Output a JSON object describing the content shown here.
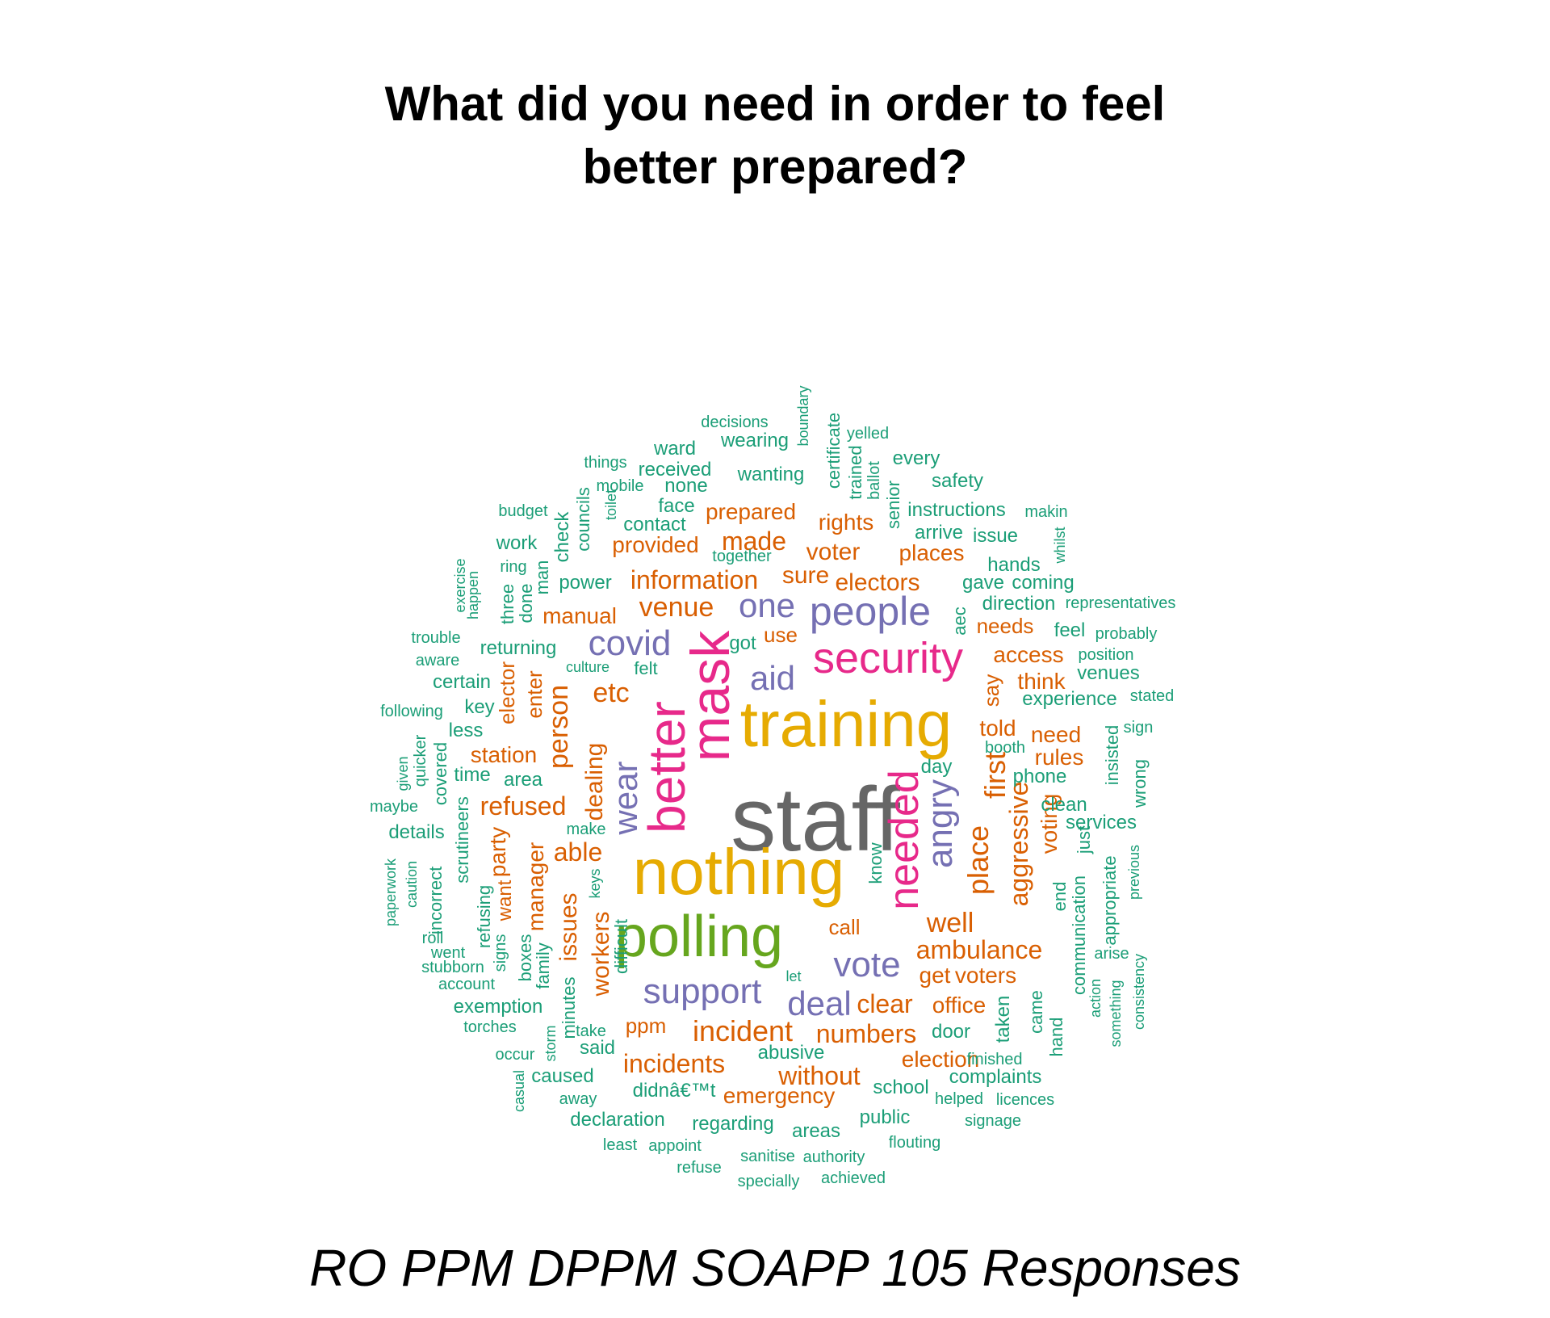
{
  "title": {
    "line1": "What did you need in order to feel",
    "line2": "better prepared?"
  },
  "subtitle": "RO PPM DPPM SOAPP 105 Responses",
  "palette": {
    "grey": "#666666",
    "gold": "#E6AB02",
    "green": "#66A61E",
    "pink": "#E7298A",
    "purple": "#7570B3",
    "orange": "#D95F02",
    "teal": "#1B9E77"
  },
  "words": [
    {
      "text": "staff",
      "size": 112,
      "color": "grey"
    },
    {
      "text": "training",
      "size": 80,
      "color": "gold"
    },
    {
      "text": "nothing",
      "size": 80,
      "color": "gold"
    },
    {
      "text": "polling",
      "size": 72,
      "color": "green"
    },
    {
      "text": "mask",
      "size": 68,
      "color": "pink"
    },
    {
      "text": "better",
      "size": 64,
      "color": "pink"
    },
    {
      "text": "security",
      "size": 54,
      "color": "pink"
    },
    {
      "text": "needed",
      "size": 52,
      "color": "pink"
    },
    {
      "text": "people",
      "size": 50,
      "color": "purple"
    },
    {
      "text": "covid",
      "size": 44,
      "color": "purple"
    },
    {
      "text": "support",
      "size": 44,
      "color": "purple"
    },
    {
      "text": "vote",
      "size": 44,
      "color": "purple"
    },
    {
      "text": "angry",
      "size": 44,
      "color": "purple"
    },
    {
      "text": "deal",
      "size": 42,
      "color": "purple"
    },
    {
      "text": "one",
      "size": 42,
      "color": "purple"
    },
    {
      "text": "aid",
      "size": 42,
      "color": "purple"
    },
    {
      "text": "wear",
      "size": 42,
      "color": "purple"
    },
    {
      "text": "incident",
      "size": 36,
      "color": "orange"
    },
    {
      "text": "first",
      "size": 36,
      "color": "orange"
    },
    {
      "text": "place",
      "size": 36,
      "color": "orange"
    },
    {
      "text": "venue",
      "size": 34,
      "color": "orange"
    },
    {
      "text": "person",
      "size": 34,
      "color": "orange"
    },
    {
      "text": "etc",
      "size": 34,
      "color": "orange"
    },
    {
      "text": "well",
      "size": 34,
      "color": "orange"
    },
    {
      "text": "aggressive",
      "size": 32,
      "color": "orange"
    },
    {
      "text": "ambulance",
      "size": 32,
      "color": "orange"
    },
    {
      "text": "information",
      "size": 32,
      "color": "orange"
    },
    {
      "text": "incidents",
      "size": 32,
      "color": "orange"
    },
    {
      "text": "refused",
      "size": 32,
      "color": "orange"
    },
    {
      "text": "made",
      "size": 32,
      "color": "orange"
    },
    {
      "text": "without",
      "size": 32,
      "color": "orange"
    },
    {
      "text": "numbers",
      "size": 32,
      "color": "orange"
    },
    {
      "text": "clear",
      "size": 32,
      "color": "orange"
    },
    {
      "text": "able",
      "size": 32,
      "color": "orange"
    },
    {
      "text": "electors",
      "size": 30,
      "color": "orange"
    },
    {
      "text": "voter",
      "size": 30,
      "color": "orange"
    },
    {
      "text": "sure",
      "size": 30,
      "color": "orange"
    },
    {
      "text": "dealing",
      "size": 30,
      "color": "orange"
    },
    {
      "text": "issues",
      "size": 30,
      "color": "orange"
    },
    {
      "text": "workers",
      "size": 30,
      "color": "orange"
    },
    {
      "text": "manager",
      "size": 28,
      "color": "orange"
    },
    {
      "text": "told",
      "size": 28,
      "color": "orange"
    },
    {
      "text": "emergency",
      "size": 28,
      "color": "orange"
    },
    {
      "text": "manual",
      "size": 28,
      "color": "orange"
    },
    {
      "text": "prepared",
      "size": 28,
      "color": "orange"
    },
    {
      "text": "places",
      "size": 28,
      "color": "orange"
    },
    {
      "text": "rights",
      "size": 28,
      "color": "orange"
    },
    {
      "text": "provided",
      "size": 28,
      "color": "orange"
    },
    {
      "text": "access",
      "size": 28,
      "color": "orange"
    },
    {
      "text": "think",
      "size": 28,
      "color": "orange"
    },
    {
      "text": "need",
      "size": 28,
      "color": "orange"
    },
    {
      "text": "rules",
      "size": 28,
      "color": "orange"
    },
    {
      "text": "station",
      "size": 28,
      "color": "orange"
    },
    {
      "text": "party",
      "size": 28,
      "color": "orange"
    },
    {
      "text": "election",
      "size": 28,
      "color": "orange"
    },
    {
      "text": "office",
      "size": 28,
      "color": "orange"
    },
    {
      "text": "get",
      "size": 28,
      "color": "orange"
    },
    {
      "text": "voters",
      "size": 28,
      "color": "orange"
    },
    {
      "text": "voting",
      "size": 28,
      "color": "orange"
    },
    {
      "text": "elector",
      "size": 26,
      "color": "orange"
    },
    {
      "text": "enter",
      "size": 26,
      "color": "orange"
    },
    {
      "text": "say",
      "size": 26,
      "color": "orange"
    },
    {
      "text": "needs",
      "size": 26,
      "color": "orange"
    },
    {
      "text": "use",
      "size": 26,
      "color": "orange"
    },
    {
      "text": "call",
      "size": 26,
      "color": "orange"
    },
    {
      "text": "ppm",
      "size": 26,
      "color": "orange"
    },
    {
      "text": "want",
      "size": 24,
      "color": "orange"
    },
    {
      "text": "got",
      "size": 24,
      "color": "teal"
    },
    {
      "text": "felt",
      "size": 22,
      "color": "teal"
    },
    {
      "text": "culture",
      "size": 18,
      "color": "teal"
    },
    {
      "text": "decisions",
      "size": 20,
      "color": "teal"
    },
    {
      "text": "boundary",
      "size": 18,
      "color": "teal"
    },
    {
      "text": "wearing",
      "size": 24,
      "color": "teal"
    },
    {
      "text": "certificate",
      "size": 22,
      "color": "teal"
    },
    {
      "text": "yelled",
      "size": 20,
      "color": "teal"
    },
    {
      "text": "ward",
      "size": 24,
      "color": "teal"
    },
    {
      "text": "trained",
      "size": 22,
      "color": "teal"
    },
    {
      "text": "every",
      "size": 24,
      "color": "teal"
    },
    {
      "text": "things",
      "size": 20,
      "color": "teal"
    },
    {
      "text": "received",
      "size": 24,
      "color": "teal"
    },
    {
      "text": "wanting",
      "size": 24,
      "color": "teal"
    },
    {
      "text": "ballot",
      "size": 20,
      "color": "teal"
    },
    {
      "text": "safety",
      "size": 24,
      "color": "teal"
    },
    {
      "text": "mobile",
      "size": 20,
      "color": "teal"
    },
    {
      "text": "none",
      "size": 24,
      "color": "teal"
    },
    {
      "text": "senior",
      "size": 22,
      "color": "teal"
    },
    {
      "text": "councils",
      "size": 22,
      "color": "teal"
    },
    {
      "text": "toilet",
      "size": 18,
      "color": "teal"
    },
    {
      "text": "instructions",
      "size": 24,
      "color": "teal"
    },
    {
      "text": "budget",
      "size": 20,
      "color": "teal"
    },
    {
      "text": "face",
      "size": 24,
      "color": "teal"
    },
    {
      "text": "makin",
      "size": 20,
      "color": "teal"
    },
    {
      "text": "check",
      "size": 24,
      "color": "teal"
    },
    {
      "text": "contact",
      "size": 24,
      "color": "teal"
    },
    {
      "text": "arrive",
      "size": 24,
      "color": "teal"
    },
    {
      "text": "issue",
      "size": 24,
      "color": "teal"
    },
    {
      "text": "whilst",
      "size": 18,
      "color": "teal"
    },
    {
      "text": "work",
      "size": 24,
      "color": "teal"
    },
    {
      "text": "together",
      "size": 20,
      "color": "teal"
    },
    {
      "text": "ring",
      "size": 20,
      "color": "teal"
    },
    {
      "text": "man",
      "size": 22,
      "color": "teal"
    },
    {
      "text": "hands",
      "size": 24,
      "color": "teal"
    },
    {
      "text": "exercise",
      "size": 18,
      "color": "teal"
    },
    {
      "text": "happen",
      "size": 18,
      "color": "teal"
    },
    {
      "text": "three",
      "size": 22,
      "color": "teal"
    },
    {
      "text": "done",
      "size": 22,
      "color": "teal"
    },
    {
      "text": "power",
      "size": 24,
      "color": "teal"
    },
    {
      "text": "gave",
      "size": 24,
      "color": "teal"
    },
    {
      "text": "coming",
      "size": 24,
      "color": "teal"
    },
    {
      "text": "aec",
      "size": 22,
      "color": "teal"
    },
    {
      "text": "direction",
      "size": 24,
      "color": "teal"
    },
    {
      "text": "representatives",
      "size": 20,
      "color": "teal"
    },
    {
      "text": "trouble",
      "size": 20,
      "color": "teal"
    },
    {
      "text": "feel",
      "size": 24,
      "color": "teal"
    },
    {
      "text": "probably",
      "size": 20,
      "color": "teal"
    },
    {
      "text": "returning",
      "size": 24,
      "color": "teal"
    },
    {
      "text": "aware",
      "size": 20,
      "color": "teal"
    },
    {
      "text": "position",
      "size": 20,
      "color": "teal"
    },
    {
      "text": "certain",
      "size": 24,
      "color": "teal"
    },
    {
      "text": "venues",
      "size": 24,
      "color": "teal"
    },
    {
      "text": "stated",
      "size": 20,
      "color": "teal"
    },
    {
      "text": "experience",
      "size": 24,
      "color": "teal"
    },
    {
      "text": "following",
      "size": 20,
      "color": "teal"
    },
    {
      "text": "key",
      "size": 24,
      "color": "teal"
    },
    {
      "text": "less",
      "size": 24,
      "color": "teal"
    },
    {
      "text": "sign",
      "size": 20,
      "color": "teal"
    },
    {
      "text": "booth",
      "size": 20,
      "color": "teal"
    },
    {
      "text": "quicker",
      "size": 20,
      "color": "teal"
    },
    {
      "text": "covered",
      "size": 22,
      "color": "teal"
    },
    {
      "text": "given",
      "size": 18,
      "color": "teal"
    },
    {
      "text": "insisted",
      "size": 22,
      "color": "teal"
    },
    {
      "text": "day",
      "size": 24,
      "color": "teal"
    },
    {
      "text": "time",
      "size": 24,
      "color": "teal"
    },
    {
      "text": "area",
      "size": 24,
      "color": "teal"
    },
    {
      "text": "phone",
      "size": 24,
      "color": "teal"
    },
    {
      "text": "wrong",
      "size": 22,
      "color": "teal"
    },
    {
      "text": "maybe",
      "size": 20,
      "color": "teal"
    },
    {
      "text": "clean",
      "size": 24,
      "color": "teal"
    },
    {
      "text": "scrutineers",
      "size": 22,
      "color": "teal"
    },
    {
      "text": "details",
      "size": 24,
      "color": "teal"
    },
    {
      "text": "make",
      "size": 20,
      "color": "teal"
    },
    {
      "text": "services",
      "size": 24,
      "color": "teal"
    },
    {
      "text": "just",
      "size": 22,
      "color": "teal"
    },
    {
      "text": "know",
      "size": 22,
      "color": "teal"
    },
    {
      "text": "paperwork",
      "size": 18,
      "color": "teal"
    },
    {
      "text": "caution",
      "size": 18,
      "color": "teal"
    },
    {
      "text": "incorrect",
      "size": 22,
      "color": "teal"
    },
    {
      "text": "appropriate",
      "size": 22,
      "color": "teal"
    },
    {
      "text": "previous",
      "size": 18,
      "color": "teal"
    },
    {
      "text": "keys",
      "size": 18,
      "color": "teal"
    },
    {
      "text": "end",
      "size": 22,
      "color": "teal"
    },
    {
      "text": "refusing",
      "size": 22,
      "color": "teal"
    },
    {
      "text": "communication",
      "size": 22,
      "color": "teal"
    },
    {
      "text": "roll",
      "size": 20,
      "color": "teal"
    },
    {
      "text": "signs",
      "size": 20,
      "color": "teal"
    },
    {
      "text": "difficult",
      "size": 22,
      "color": "teal"
    },
    {
      "text": "went",
      "size": 20,
      "color": "teal"
    },
    {
      "text": "boxes",
      "size": 22,
      "color": "teal"
    },
    {
      "text": "arise",
      "size": 20,
      "color": "teal"
    },
    {
      "text": "stubborn",
      "size": 20,
      "color": "teal"
    },
    {
      "text": "family",
      "size": 22,
      "color": "teal"
    },
    {
      "text": "let",
      "size": 18,
      "color": "teal"
    },
    {
      "text": "consistency",
      "size": 18,
      "color": "teal"
    },
    {
      "text": "account",
      "size": 20,
      "color": "teal"
    },
    {
      "text": "minutes",
      "size": 22,
      "color": "teal"
    },
    {
      "text": "came",
      "size": 22,
      "color": "teal"
    },
    {
      "text": "action",
      "size": 18,
      "color": "teal"
    },
    {
      "text": "something",
      "size": 18,
      "color": "teal"
    },
    {
      "text": "exemption",
      "size": 24,
      "color": "teal"
    },
    {
      "text": "taken",
      "size": 24,
      "color": "teal"
    },
    {
      "text": "torches",
      "size": 20,
      "color": "teal"
    },
    {
      "text": "take",
      "size": 20,
      "color": "teal"
    },
    {
      "text": "door",
      "size": 24,
      "color": "teal"
    },
    {
      "text": "hand",
      "size": 22,
      "color": "teal"
    },
    {
      "text": "occur",
      "size": 20,
      "color": "teal"
    },
    {
      "text": "storm",
      "size": 18,
      "color": "teal"
    },
    {
      "text": "said",
      "size": 24,
      "color": "teal"
    },
    {
      "text": "abusive",
      "size": 24,
      "color": "teal"
    },
    {
      "text": "finished",
      "size": 20,
      "color": "teal"
    },
    {
      "text": "casual",
      "size": 18,
      "color": "teal"
    },
    {
      "text": "caused",
      "size": 24,
      "color": "teal"
    },
    {
      "text": "complaints",
      "size": 24,
      "color": "teal"
    },
    {
      "text": "school",
      "size": 24,
      "color": "teal"
    },
    {
      "text": "away",
      "size": 20,
      "color": "teal"
    },
    {
      "text": "didnâ€™t",
      "size": 24,
      "color": "teal"
    },
    {
      "text": "helped",
      "size": 20,
      "color": "teal"
    },
    {
      "text": "licences",
      "size": 20,
      "color": "teal"
    },
    {
      "text": "declaration",
      "size": 24,
      "color": "teal"
    },
    {
      "text": "regarding",
      "size": 24,
      "color": "teal"
    },
    {
      "text": "public",
      "size": 24,
      "color": "teal"
    },
    {
      "text": "signage",
      "size": 20,
      "color": "teal"
    },
    {
      "text": "areas",
      "size": 24,
      "color": "teal"
    },
    {
      "text": "flouting",
      "size": 20,
      "color": "teal"
    },
    {
      "text": "least",
      "size": 20,
      "color": "teal"
    },
    {
      "text": "appoint",
      "size": 20,
      "color": "teal"
    },
    {
      "text": "sanitise",
      "size": 20,
      "color": "teal"
    },
    {
      "text": "authority",
      "size": 20,
      "color": "teal"
    },
    {
      "text": "refuse",
      "size": 20,
      "color": "teal"
    },
    {
      "text": "specially",
      "size": 20,
      "color": "teal"
    },
    {
      "text": "achieved",
      "size": 20,
      "color": "teal"
    }
  ]
}
